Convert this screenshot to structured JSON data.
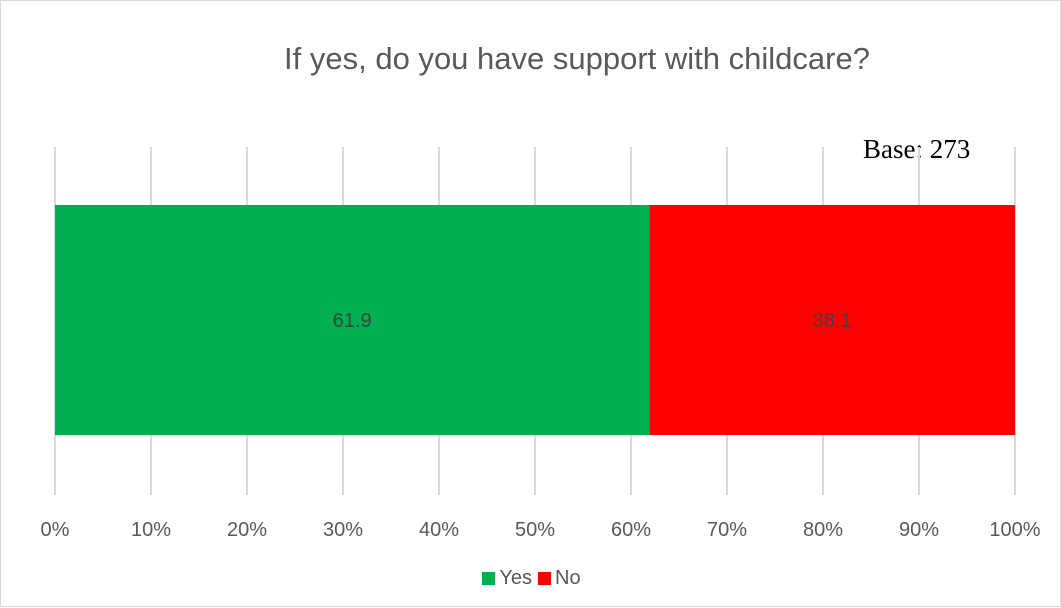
{
  "chart_data": {
    "type": "bar",
    "orientation": "horizontal",
    "stacked": true,
    "title": "If yes, do you have support with childcare?",
    "annotation": "Base: 273",
    "categories": [
      ""
    ],
    "series": [
      {
        "name": "Yes",
        "values": [
          61.9
        ],
        "color": "#00b050"
      },
      {
        "name": "No",
        "values": [
          38.1
        ],
        "color": "#ff0000"
      }
    ],
    "xlim": [
      0,
      100
    ],
    "x_ticks": [
      "0%",
      "10%",
      "20%",
      "30%",
      "40%",
      "50%",
      "60%",
      "70%",
      "80%",
      "90%",
      "100%"
    ],
    "grid": true,
    "legend_position": "bottom",
    "data_labels": [
      "61.9",
      "38.1"
    ]
  }
}
